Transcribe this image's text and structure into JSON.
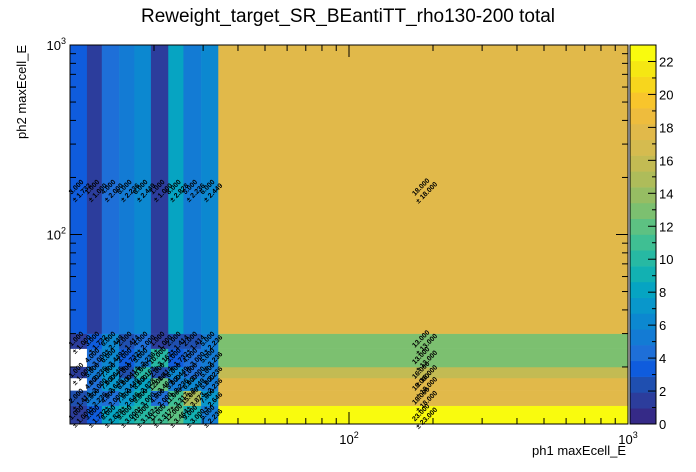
{
  "chart_data": {
    "type": "heatmap",
    "title": "Reweight_target_SR_BEantiTT_rho130-200 total",
    "xlabel": "ph1 maxEcell_E",
    "ylabel": "ph2 maxEcell_E",
    "x_scale": "log",
    "y_scale": "log",
    "xlim": [
      10,
      1000
    ],
    "ylim": [
      10,
      1000
    ],
    "x_bin_edges": [
      10,
      11.5,
      13,
      15,
      17,
      19.5,
      22.5,
      25.5,
      29.5,
      34,
      1000
    ],
    "y_bin_edges": [
      10,
      12.5,
      15,
      17.5,
      20,
      25,
      30,
      1000
    ],
    "x_ticks": [
      {
        "v": 100,
        "base": "10",
        "exp": "2"
      },
      {
        "v": 1000,
        "base": "10",
        "exp": "3"
      }
    ],
    "y_ticks": [
      {
        "v": 100,
        "base": "10",
        "exp": "2"
      },
      {
        "v": 1000,
        "base": "10",
        "exp": "3"
      }
    ],
    "values": [
      [
        1,
        3,
        8,
        9,
        10,
        11,
        12,
        9,
        5,
        23
      ],
      [
        2,
        5,
        4,
        7,
        9,
        4,
        11,
        15,
        7,
        18
      ],
      [
        null,
        4,
        7,
        6,
        8,
        12,
        5,
        6,
        5,
        18
      ],
      [
        1,
        5,
        7,
        2,
        10,
        2,
        6,
        4,
        5,
        16
      ],
      [
        null,
        4,
        6,
        3,
        5,
        10,
        3,
        4,
        5,
        13
      ],
      [
        1,
        3,
        6,
        2,
        4,
        1,
        2,
        2,
        5,
        13
      ],
      [
        3,
        1,
        4,
        5,
        6,
        1,
        8,
        5,
        6,
        18
      ]
    ],
    "labels": [
      [
        "1.000",
        "1.732",
        "2.828",
        "3.000",
        "3.162",
        "3.317",
        "3.464",
        "3.000",
        "2.236",
        "23.000"
      ],
      [
        "1.414",
        "2.236",
        "2.000",
        "2.646",
        "3.000",
        "2.000",
        "3.317",
        "3.873",
        "2.646",
        "18.000"
      ],
      [
        "",
        "2.000",
        "2.646",
        "2.449",
        "2.828",
        "3.464",
        "2.236",
        "2.449",
        "2.236",
        "18.000"
      ],
      [
        "1.000",
        "2.236",
        "2.646",
        "1.414",
        "3.162",
        "1.414",
        "2.449",
        "2.000",
        "2.236",
        "16.000"
      ],
      [
        "",
        "2.000",
        "2.449",
        "1.732",
        "2.236",
        "3.162",
        "1.732",
        "2.000",
        "2.236",
        "13.000"
      ],
      [
        "1.000",
        "1.732",
        "2.449",
        "1.414",
        "2.000",
        "1.000",
        "1.414",
        "1.414",
        "2.236",
        "13.000"
      ],
      [
        "1.732",
        "1.000",
        "2.000",
        "2.236",
        "2.449",
        "1.000",
        "2.828",
        "2.236",
        "2.449",
        "18.000"
      ]
    ],
    "colorbar": {
      "min": 0,
      "max": 23,
      "ticks": [
        "0",
        "2",
        "4",
        "6",
        "8",
        "10",
        "12",
        "14",
        "16",
        "18",
        "20",
        "22"
      ],
      "colors": [
        "#352a87",
        "#2c3d9c",
        "#1f4fb0",
        "#0f5cdd",
        "#1e6fd8",
        "#137bd4",
        "#0c88d0",
        "#0997cb",
        "#06a4c2",
        "#12b1b2",
        "#27b9a3",
        "#3fbf93",
        "#5dc182",
        "#7cc070",
        "#96bd63",
        "#aebc5a",
        "#c3bb53",
        "#d5bb4f",
        "#e1b94a",
        "#eebc3d",
        "#f8c52c",
        "#f7d61d",
        "#f5e713",
        "#f9fb0e"
      ]
    }
  }
}
